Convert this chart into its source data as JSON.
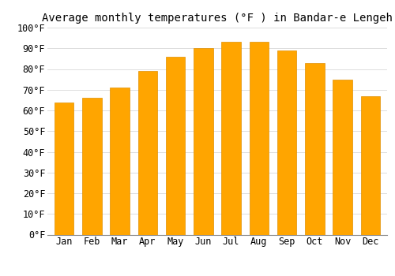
{
  "title": "Average monthly temperatures (°F ) in Bandar-e Lengeh",
  "months": [
    "Jan",
    "Feb",
    "Mar",
    "Apr",
    "May",
    "Jun",
    "Jul",
    "Aug",
    "Sep",
    "Oct",
    "Nov",
    "Dec"
  ],
  "values": [
    64,
    66,
    71,
    79,
    86,
    90,
    93,
    93,
    89,
    83,
    75,
    67
  ],
  "bar_color": "#FFA500",
  "bar_edge_color": "#E09000",
  "background_color": "#ffffff",
  "grid_color": "#dddddd",
  "ylim": [
    0,
    100
  ],
  "yticks": [
    0,
    10,
    20,
    30,
    40,
    50,
    60,
    70,
    80,
    90,
    100
  ],
  "ylabel_suffix": "°F",
  "title_fontsize": 10,
  "tick_fontsize": 8.5,
  "font_family": "monospace"
}
